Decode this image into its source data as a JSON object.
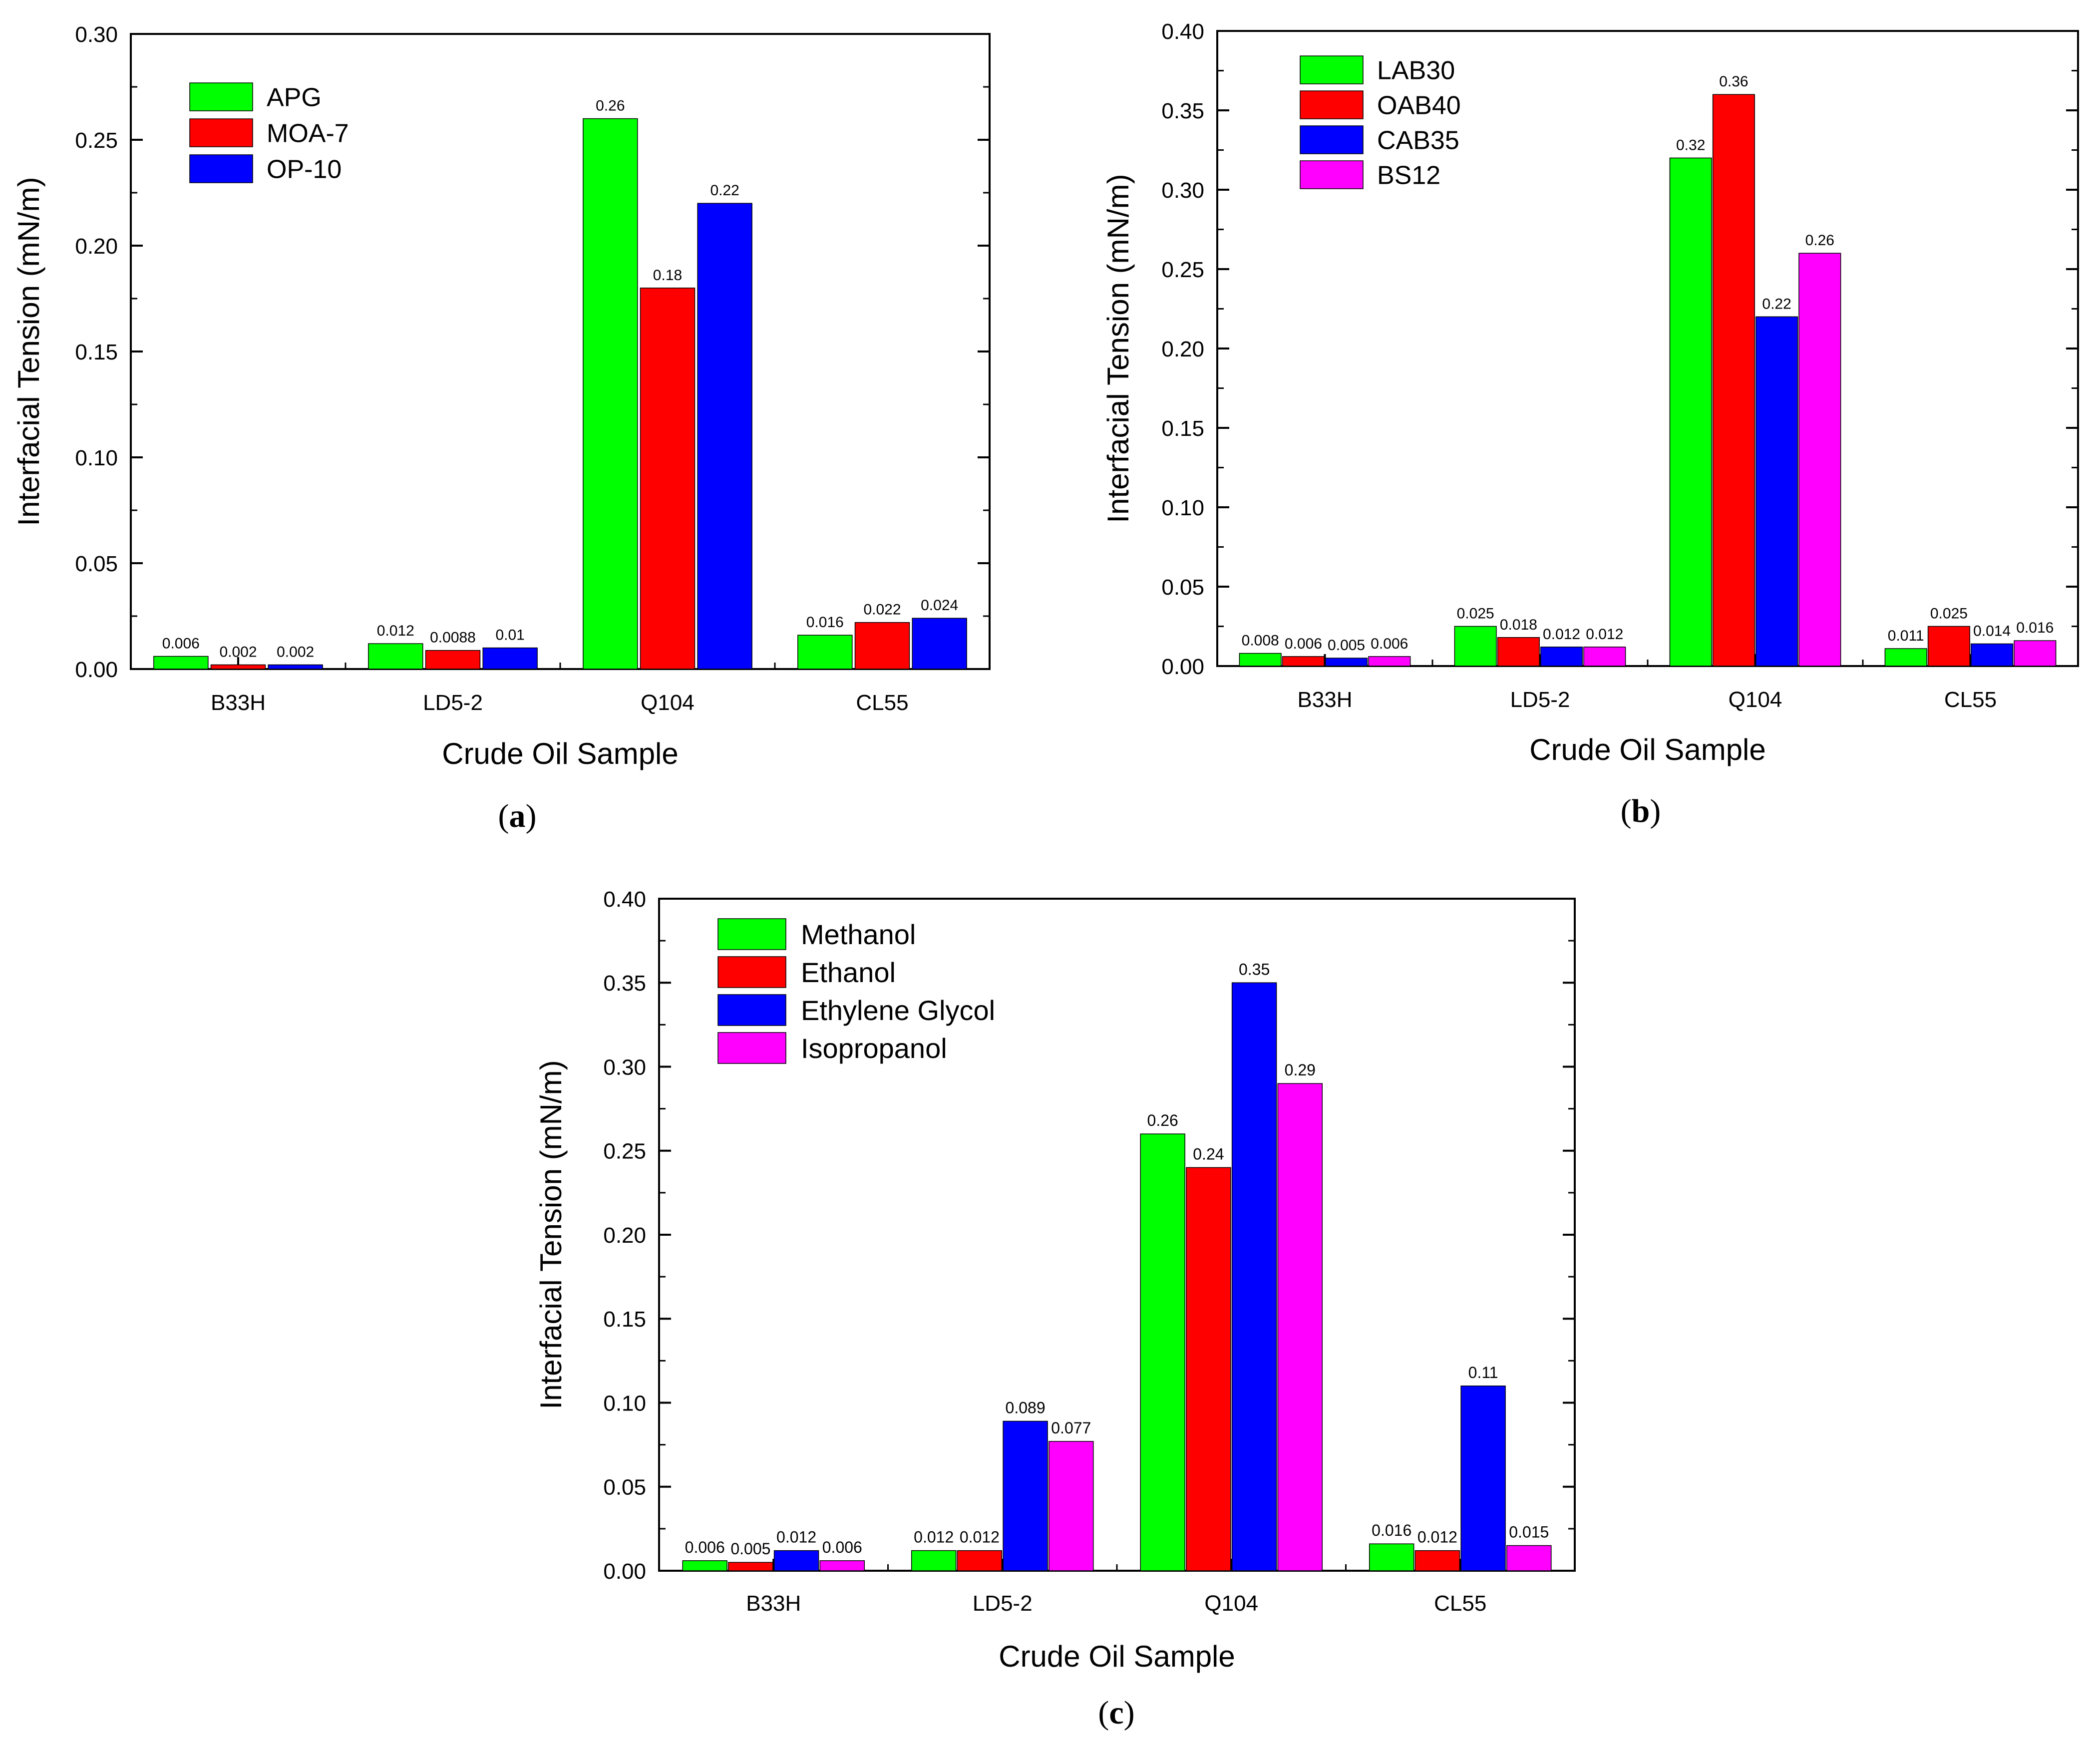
{
  "figure": {
    "panels": [
      "(a)",
      "(b)",
      "(c)"
    ]
  },
  "chart_data": [
    {
      "id": "a",
      "type": "bar",
      "caption_letter": "a",
      "xlabel": "Crude Oil Sample",
      "ylabel": "Interfacial Tension (mN/m)",
      "ylim": [
        0,
        0.3
      ],
      "yticks": [
        0.0,
        0.05,
        0.1,
        0.15,
        0.2,
        0.25,
        0.3
      ],
      "ytick_labels": [
        "0.00",
        "0.05",
        "0.10",
        "0.15",
        "0.20",
        "0.25",
        "0.30"
      ],
      "categories": [
        "B33H",
        "LD5-2",
        "Q104",
        "CL55"
      ],
      "legend_position": "top-left",
      "series": [
        {
          "name": "APG",
          "color": "#00ff00",
          "values": [
            0.006,
            0.012,
            0.26,
            0.016
          ],
          "labels": [
            "0.006",
            "0.012",
            "0.26",
            "0.016"
          ]
        },
        {
          "name": "MOA-7",
          "color": "#ff0000",
          "values": [
            0.002,
            0.0088,
            0.18,
            0.022
          ],
          "labels": [
            "0.002",
            "0.0088",
            "0.18",
            "0.022"
          ]
        },
        {
          "name": "OP-10",
          "color": "#0000ff",
          "values": [
            0.002,
            0.01,
            0.22,
            0.024
          ],
          "labels": [
            "0.002",
            "0.01",
            "0.22",
            "0.024"
          ]
        }
      ]
    },
    {
      "id": "b",
      "type": "bar",
      "caption_letter": "b",
      "xlabel": "Crude Oil Sample",
      "ylabel": "Interfacial Tension (mN/m)",
      "ylim": [
        0,
        0.4
      ],
      "yticks": [
        0.0,
        0.05,
        0.1,
        0.15,
        0.2,
        0.25,
        0.3,
        0.35,
        0.4
      ],
      "ytick_labels": [
        "0.00",
        "0.05",
        "0.10",
        "0.15",
        "0.20",
        "0.25",
        "0.30",
        "0.35",
        "0.40"
      ],
      "categories": [
        "B33H",
        "LD5-2",
        "Q104",
        "CL55"
      ],
      "legend_position": "top-left",
      "series": [
        {
          "name": "LAB30",
          "color": "#00ff00",
          "values": [
            0.008,
            0.025,
            0.32,
            0.011
          ],
          "labels": [
            "0.008",
            "0.025",
            "0.32",
            "0.011"
          ]
        },
        {
          "name": "OAB40",
          "color": "#ff0000",
          "values": [
            0.006,
            0.018,
            0.36,
            0.025
          ],
          "labels": [
            "0.006",
            "0.018",
            "0.36",
            "0.025"
          ]
        },
        {
          "name": "CAB35",
          "color": "#0000ff",
          "values": [
            0.005,
            0.012,
            0.22,
            0.014
          ],
          "labels": [
            "0.005",
            "0.012",
            "0.22",
            "0.014"
          ]
        },
        {
          "name": "BS12",
          "color": "#ff00ff",
          "values": [
            0.006,
            0.012,
            0.26,
            0.016
          ],
          "labels": [
            "0.006",
            "0.012",
            "0.26",
            "0.016"
          ]
        }
      ]
    },
    {
      "id": "c",
      "type": "bar",
      "caption_letter": "c",
      "xlabel": "Crude Oil Sample",
      "ylabel": "Interfacial Tension (mN/m)",
      "ylim": [
        0,
        0.4
      ],
      "yticks": [
        0.0,
        0.05,
        0.1,
        0.15,
        0.2,
        0.25,
        0.3,
        0.35,
        0.4
      ],
      "ytick_labels": [
        "0.00",
        "0.05",
        "0.10",
        "0.15",
        "0.20",
        "0.25",
        "0.30",
        "0.35",
        "0.40"
      ],
      "categories": [
        "B33H",
        "LD5-2",
        "Q104",
        "CL55"
      ],
      "legend_position": "top-left",
      "series": [
        {
          "name": "Methanol",
          "color": "#00ff00",
          "values": [
            0.006,
            0.012,
            0.26,
            0.016
          ],
          "labels": [
            "0.006",
            "0.012",
            "0.26",
            "0.016"
          ]
        },
        {
          "name": "Ethanol",
          "color": "#ff0000",
          "values": [
            0.005,
            0.012,
            0.24,
            0.012
          ],
          "labels": [
            "0.005",
            "0.012",
            "0.24",
            "0.012"
          ]
        },
        {
          "name": "Ethylene Glycol",
          "color": "#0000ff",
          "values": [
            0.012,
            0.089,
            0.35,
            0.11
          ],
          "labels": [
            "0.012",
            "0.089",
            "0.35",
            "0.11"
          ]
        },
        {
          "name": "Isopropanol",
          "color": "#ff00ff",
          "values": [
            0.006,
            0.077,
            0.29,
            0.015
          ],
          "labels": [
            "0.006",
            "0.077",
            "0.29",
            "0.015"
          ]
        }
      ]
    }
  ]
}
